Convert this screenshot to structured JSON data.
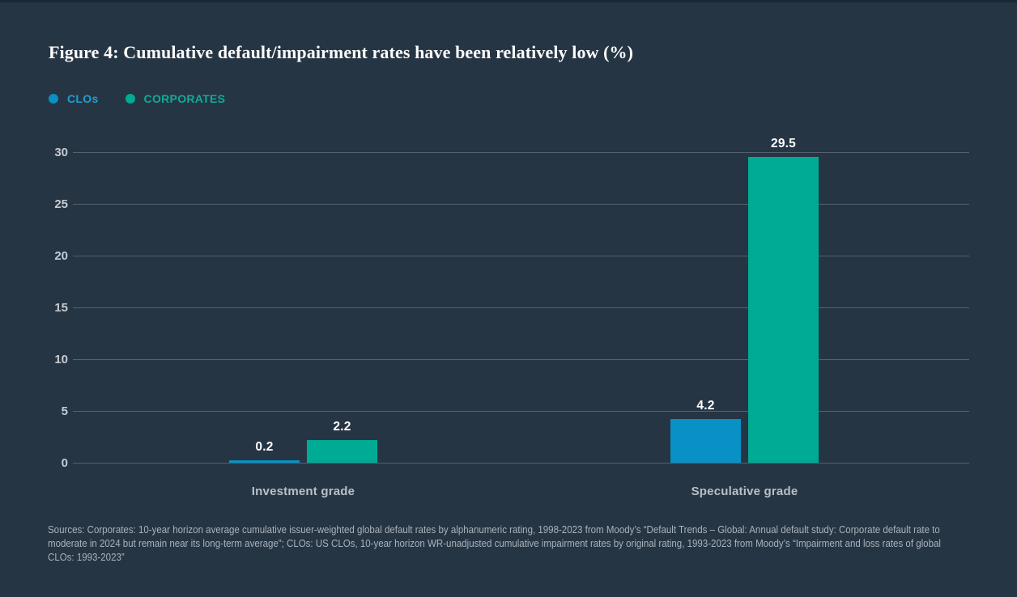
{
  "page": {
    "background_color": "#263544",
    "top_strip_color": "#1c2934"
  },
  "title": "Figure 4: Cumulative default/impairment rates have been relatively low (%)",
  "legend": [
    {
      "label": "CLOs",
      "color": "#0990c5",
      "text_color": "#1f9fd3"
    },
    {
      "label": "CORPORATES",
      "color": "#00ab95",
      "text_color": "#10ac94"
    }
  ],
  "chart_data": {
    "type": "bar",
    "categories": [
      "Investment grade",
      "Speculative grade"
    ],
    "series": [
      {
        "name": "CLOs",
        "color": "#0990c5",
        "values": [
          0.2,
          4.2
        ]
      },
      {
        "name": "CORPORATES",
        "color": "#00ab95",
        "values": [
          2.2,
          29.5
        ]
      }
    ],
    "value_labels": [
      [
        "0.2",
        "4.2"
      ],
      [
        "2.2",
        "29.5"
      ]
    ],
    "title": "Figure 4: Cumulative default/impairment rates have been relatively low (%)",
    "xlabel": "",
    "ylabel": "",
    "ylim": [
      0,
      30
    ],
    "yticks": [
      0,
      5,
      10,
      15,
      20,
      25,
      30
    ],
    "grid": true,
    "gridline_color": "rgba(255,255,255,0.22)",
    "tick_label_color": "#c5cbd1",
    "category_label_color": "#b9c0c7",
    "value_label_color": "#ffffff",
    "legend_position": "top-left"
  },
  "source_note": "Sources: Corporates: 10-year horizon average cumulative issuer-weighted global default rates by alphanumeric rating, 1998-2023 from Moody’s “Default Trends – Global: Annual default study: Corporate default rate to moderate in 2024 but remain near its long-term average”; CLOs: US CLOs, 10-year horizon WR-unadjusted cumulative impairment rates by original rating, 1993-2023 from Moody’s “Impairment and loss rates of global CLOs: 1993-2023”"
}
